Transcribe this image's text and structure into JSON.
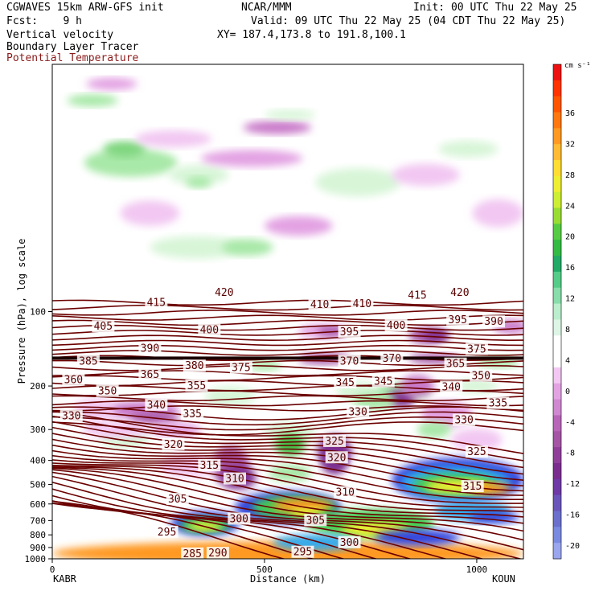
{
  "header": {
    "model": "CGWAVES 15km ARW-GFS init",
    "org": "NCAR/MMM",
    "init": "Init: 00 UTC Thu 22 May 25",
    "fcst": "Fcst:    9 h",
    "valid": "Valid: 09 UTC Thu 22 May 25 (04 CDT Thu 22 May 25)",
    "xy": "XY= 187.4,173.8 to 191.8,100.1",
    "field1": "Vertical velocity",
    "field2": "Boundary Layer Tracer",
    "field3": "Potential Temperature"
  },
  "colors": {
    "theta": "#6b0000",
    "negative_fill": [
      "#f2c8f2",
      "#e3a3e3",
      "#c97ac9",
      "#a455a4",
      "#7b2d8f"
    ],
    "positive_fill": [
      "#d8f5d8",
      "#a8e8a8",
      "#7fd67f",
      "#44bb44"
    ],
    "tracer_fill": [
      "#3344dd",
      "#33aaee",
      "#44cc55",
      "#eeee33",
      "#ff9922"
    ]
  },
  "chart_data": {
    "type": "heatmap",
    "xlabel": "Distance (km)",
    "ylabel": "Pressure (hPa), log scale",
    "xlim": [
      0,
      1110
    ],
    "x_ticks": [
      0,
      500,
      1000
    ],
    "y_scale": "log",
    "ylim": [
      1000,
      10
    ],
    "y_ticks": [
      100,
      200,
      300,
      400,
      500,
      600,
      700,
      800,
      900,
      1000
    ],
    "left_station": "KABR",
    "right_station": "KOUN",
    "colorbar": {
      "unit": "cm s⁻¹",
      "ticks": [
        36,
        32,
        28,
        24,
        20,
        16,
        12,
        8,
        4,
        0,
        -4,
        -8,
        -12,
        -16,
        -20
      ]
    },
    "theta_labels": [
      {
        "value": 420,
        "x": 405,
        "p": 84
      },
      {
        "value": 415,
        "x": 245,
        "p": 92
      },
      {
        "value": 415,
        "x": 860,
        "p": 86
      },
      {
        "value": 420,
        "x": 960,
        "p": 84
      },
      {
        "value": 410,
        "x": 630,
        "p": 94
      },
      {
        "value": 410,
        "x": 730,
        "p": 93
      },
      {
        "value": 405,
        "x": 120,
        "p": 115
      },
      {
        "value": 400,
        "x": 370,
        "p": 119
      },
      {
        "value": 400,
        "x": 810,
        "p": 114
      },
      {
        "value": 395,
        "x": 700,
        "p": 121
      },
      {
        "value": 395,
        "x": 955,
        "p": 108
      },
      {
        "value": 390,
        "x": 230,
        "p": 141
      },
      {
        "value": 390,
        "x": 1040,
        "p": 110
      },
      {
        "value": 385,
        "x": 85,
        "p": 159
      },
      {
        "value": 380,
        "x": 335,
        "p": 166
      },
      {
        "value": 375,
        "x": 445,
        "p": 169
      },
      {
        "value": 375,
        "x": 1000,
        "p": 142
      },
      {
        "value": 370,
        "x": 700,
        "p": 159
      },
      {
        "value": 370,
        "x": 800,
        "p": 155
      },
      {
        "value": 360,
        "x": 50,
        "p": 189
      },
      {
        "value": 365,
        "x": 230,
        "p": 180
      },
      {
        "value": 365,
        "x": 950,
        "p": 163
      },
      {
        "value": 355,
        "x": 340,
        "p": 200
      },
      {
        "value": 350,
        "x": 130,
        "p": 210
      },
      {
        "value": 350,
        "x": 1010,
        "p": 182
      },
      {
        "value": 345,
        "x": 690,
        "p": 194
      },
      {
        "value": 345,
        "x": 780,
        "p": 192
      },
      {
        "value": 340,
        "x": 245,
        "p": 239
      },
      {
        "value": 340,
        "x": 940,
        "p": 202
      },
      {
        "value": 335,
        "x": 330,
        "p": 260
      },
      {
        "value": 335,
        "x": 1050,
        "p": 235
      },
      {
        "value": 330,
        "x": 45,
        "p": 265
      },
      {
        "value": 330,
        "x": 720,
        "p": 255
      },
      {
        "value": 330,
        "x": 970,
        "p": 275
      },
      {
        "value": 325,
        "x": 665,
        "p": 335
      },
      {
        "value": 325,
        "x": 1000,
        "p": 370
      },
      {
        "value": 320,
        "x": 285,
        "p": 345
      },
      {
        "value": 320,
        "x": 670,
        "p": 390
      },
      {
        "value": 315,
        "x": 370,
        "p": 420
      },
      {
        "value": 315,
        "x": 990,
        "p": 510
      },
      {
        "value": 310,
        "x": 430,
        "p": 475
      },
      {
        "value": 310,
        "x": 690,
        "p": 540
      },
      {
        "value": 305,
        "x": 295,
        "p": 575
      },
      {
        "value": 305,
        "x": 620,
        "p": 700
      },
      {
        "value": 300,
        "x": 440,
        "p": 690
      },
      {
        "value": 300,
        "x": 700,
        "p": 860
      },
      {
        "value": 295,
        "x": 270,
        "p": 780
      },
      {
        "value": 295,
        "x": 590,
        "p": 940
      },
      {
        "value": 290,
        "x": 390,
        "p": 950
      },
      {
        "value": 285,
        "x": 330,
        "p": 955
      }
    ]
  }
}
